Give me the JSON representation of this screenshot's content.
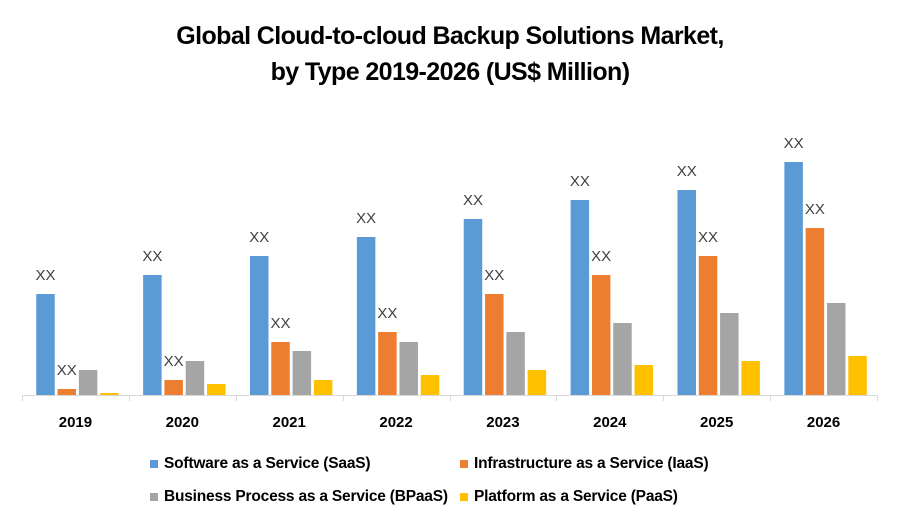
{
  "chart_data": {
    "type": "bar",
    "title": "Global Cloud-to-cloud Backup Solutions Market,",
    "subtitle": "by Type 2019-2026 (US$ Million)",
    "xlabel": "",
    "ylabel": "",
    "ylim": [
      0,
      245
    ],
    "grid": false,
    "legend_position": "bottom",
    "categories": [
      "2019",
      "2020",
      "2021",
      "2022",
      "2023",
      "2024",
      "2025",
      "2026"
    ],
    "series": [
      {
        "name": "Software as a Service (SaaS)",
        "color": "#5B9BD5",
        "values": [
          101,
          120,
          139,
          158,
          176,
          195,
          205,
          233
        ],
        "labels": [
          "XX",
          "XX",
          "XX",
          "XX",
          "XX",
          "XX",
          "XX",
          "XX"
        ]
      },
      {
        "name": "Infrastructure as a Service (IaaS)",
        "color": "#ED7D31",
        "values": [
          6,
          15,
          53,
          63,
          101,
          120,
          139,
          167
        ],
        "labels": [
          "XX",
          "XX",
          "XX",
          "XX",
          "XX",
          "XX",
          "XX",
          "XX"
        ]
      },
      {
        "name": "Business Process as a Service (BPaaS)",
        "color": "#A5A5A5",
        "values": [
          25,
          34,
          44,
          53,
          63,
          72,
          82,
          92
        ],
        "labels": null
      },
      {
        "name": "Platform as a Service (PaaS)",
        "color": "#FFC000",
        "values": [
          2,
          11,
          15,
          20,
          25,
          30,
          34,
          39
        ],
        "labels": null
      }
    ]
  }
}
